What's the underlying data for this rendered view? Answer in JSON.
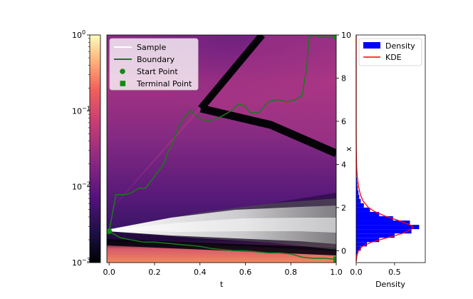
{
  "chart_data": [
    {
      "type": "heatmap",
      "role": "colorbar",
      "scale": "log",
      "range": [
        0.001,
        1
      ],
      "ticks": [
        {
          "value": 0.001,
          "base": "10",
          "exp": "−3"
        },
        {
          "value": 0.01,
          "base": "10",
          "exp": "−2"
        },
        {
          "value": 0.1,
          "base": "10",
          "exp": "−1"
        },
        {
          "value": 1,
          "base": "10",
          "exp": "0"
        }
      ],
      "colormap": [
        "#000004",
        "#3b0f70",
        "#8c2981",
        "#de4968",
        "#fe9f6d",
        "#fcfdbf"
      ]
    },
    {
      "type": "heatmap",
      "xlabel": "t",
      "ylabel": "x",
      "xlim": [
        -0.01,
        1.0
      ],
      "ylim": [
        -0.55,
        10.0
      ],
      "xticks": [
        "0.0",
        "0.2",
        "0.4",
        "0.6",
        "0.8",
        "1.0"
      ],
      "xtick_values": [
        0,
        0.2,
        0.4,
        0.6,
        0.8,
        1.0
      ],
      "yticks": [
        "0",
        "2",
        "4",
        "6",
        "8",
        "10"
      ],
      "ytick_values": [
        0,
        2,
        4,
        6,
        8,
        10
      ],
      "legend_position": "top-left",
      "legend": [
        {
          "label": "Sample",
          "marker": "line",
          "color": "#ffffff"
        },
        {
          "label": "Boundary",
          "marker": "line",
          "color": "#1a7a1a"
        },
        {
          "label": "Start Point",
          "marker": "circle",
          "color": "#138a13"
        },
        {
          "label": "Terminal Point",
          "marker": "square",
          "color": "#138a13"
        }
      ],
      "colors": {
        "boundary": "#1a7a1a",
        "points": "#138a13"
      },
      "series": [
        {
          "name": "Boundary",
          "x": [
            0.0,
            0.03,
            0.07,
            0.1,
            0.13,
            0.16,
            0.19,
            0.21,
            0.24,
            0.26,
            0.28,
            0.3,
            0.33,
            0.36,
            0.4,
            0.44,
            0.49,
            0.54,
            0.57,
            0.6,
            0.62,
            0.66,
            0.7,
            0.74,
            0.78,
            0.82,
            0.85,
            0.87,
            0.88,
            0.9,
            0.93,
            0.96,
            1.0
          ],
          "y": [
            0.9,
            2.6,
            2.6,
            2.7,
            2.9,
            2.9,
            3.3,
            3.6,
            4.0,
            4.6,
            5.0,
            5.6,
            6.2,
            6.5,
            6.1,
            6.0,
            6.2,
            6.5,
            6.8,
            6.7,
            6.4,
            6.4,
            6.9,
            7.0,
            6.9,
            7.0,
            7.2,
            8.5,
            9.9,
            10.0,
            9.9,
            9.9,
            9.9
          ]
        },
        {
          "name": "Boundary",
          "x": [
            0.0,
            0.05,
            0.1,
            0.15,
            0.2,
            0.25,
            0.3,
            0.35,
            0.4,
            0.45,
            0.5,
            0.55,
            0.6,
            0.65,
            0.7,
            0.75,
            0.8,
            0.85,
            0.9,
            0.95,
            1.0
          ],
          "y": [
            0.9,
            0.6,
            0.5,
            0.4,
            0.4,
            0.35,
            0.3,
            0.25,
            0.2,
            0.1,
            0.05,
            0.0,
            0.0,
            -0.05,
            -0.1,
            -0.1,
            -0.15,
            -0.3,
            -0.35,
            -0.35,
            -0.4
          ]
        }
      ],
      "points": [
        {
          "name": "Start Point",
          "marker": "circle",
          "x": 0.0,
          "y": 0.9
        },
        {
          "name": "Start Point",
          "marker": "circle",
          "x": 0.0,
          "y": 0.9
        },
        {
          "name": "Terminal Point",
          "marker": "square",
          "x": 1.0,
          "y": 9.9
        },
        {
          "name": "Terminal Point",
          "marker": "square",
          "x": 1.0,
          "y": -0.4
        }
      ]
    },
    {
      "type": "bar",
      "orientation": "horizontal",
      "xlabel": "Density",
      "xlim": [
        0,
        0.9
      ],
      "ylim": [
        -0.55,
        10.0
      ],
      "xticks": [
        "0.0",
        "0.5"
      ],
      "xtick_values": [
        0,
        0.5
      ],
      "legend_position": "top-right",
      "legend": [
        {
          "label": "Density",
          "marker": "patch",
          "color": "#0000ff"
        },
        {
          "label": "KDE",
          "marker": "line",
          "color": "#ff0000"
        }
      ],
      "colors": {
        "density": "#0000ff",
        "kde": "#ff0000"
      },
      "histogram_y": [
        -0.3,
        -0.1,
        0.1,
        0.3,
        0.5,
        0.7,
        0.9,
        1.1,
        1.3,
        1.5,
        1.7,
        1.9,
        2.1,
        2.3,
        2.5,
        2.7,
        2.9,
        3.1,
        3.3,
        3.5,
        3.7,
        3.9
      ],
      "histogram_density": [
        0.0,
        0.02,
        0.06,
        0.14,
        0.3,
        0.5,
        0.72,
        0.82,
        0.7,
        0.48,
        0.3,
        0.18,
        0.1,
        0.06,
        0.04,
        0.03,
        0.02,
        0.015,
        0.01,
        0.005,
        0.003,
        0.001
      ],
      "kde_y": [
        -0.5,
        -0.2,
        0.0,
        0.2,
        0.4,
        0.6,
        0.8,
        1.0,
        1.1,
        1.2,
        1.4,
        1.6,
        1.8,
        2.0,
        2.3,
        2.6,
        3.0,
        3.5,
        4.0,
        5.0,
        6.0,
        8.0,
        10.0
      ],
      "kde_density": [
        0.0,
        0.01,
        0.03,
        0.08,
        0.2,
        0.4,
        0.6,
        0.72,
        0.74,
        0.7,
        0.55,
        0.38,
        0.25,
        0.16,
        0.09,
        0.055,
        0.03,
        0.012,
        0.005,
        0.001,
        0.0,
        0.0,
        0.0
      ]
    }
  ]
}
